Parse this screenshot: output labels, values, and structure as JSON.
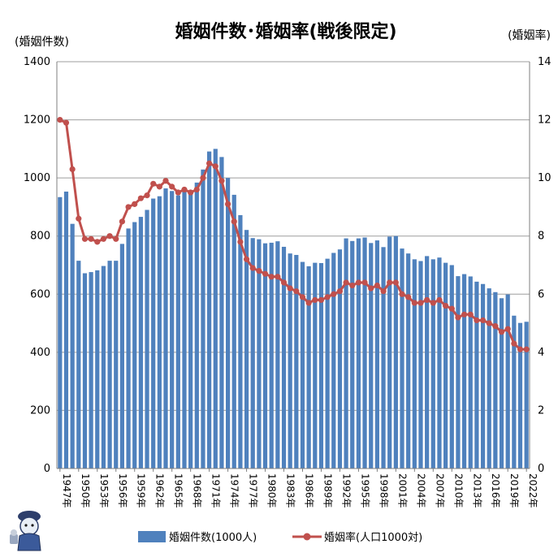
{
  "chart_data": {
    "type": "bar+line",
    "title": "婚姻件数･婚姻率(戦後限定)",
    "y_left_label": "(婚姻件数)",
    "y_right_label": "(婚姻率)",
    "y_left_range": [
      0,
      1400
    ],
    "y_left_ticks": [
      "0",
      "200",
      "400",
      "600",
      "800",
      "1000",
      "1200",
      "1400"
    ],
    "y_right_range": [
      0,
      14
    ],
    "y_right_ticks": [
      "0",
      "2",
      "4",
      "6",
      "8",
      "10",
      "12",
      "14"
    ],
    "grid": "horizontal",
    "legend_position": "bottom",
    "x": [
      1947,
      1948,
      1949,
      1950,
      1951,
      1952,
      1953,
      1954,
      1955,
      1956,
      1957,
      1958,
      1959,
      1960,
      1961,
      1962,
      1963,
      1964,
      1965,
      1966,
      1967,
      1968,
      1969,
      1970,
      1971,
      1972,
      1973,
      1974,
      1975,
      1976,
      1977,
      1978,
      1979,
      1980,
      1981,
      1982,
      1983,
      1984,
      1985,
      1986,
      1987,
      1988,
      1989,
      1990,
      1991,
      1992,
      1993,
      1994,
      1995,
      1996,
      1997,
      1998,
      1999,
      2000,
      2001,
      2002,
      2003,
      2004,
      2005,
      2006,
      2007,
      2008,
      2009,
      2010,
      2011,
      2012,
      2013,
      2014,
      2015,
      2016,
      2017,
      2018,
      2019,
      2020,
      2021,
      2022
    ],
    "x_tick_labels": [
      "1947年",
      "1950年",
      "1953年",
      "1956年",
      "1959年",
      "1962年",
      "1965年",
      "1968年",
      "1971年",
      "1974年",
      "1977年",
      "1980年",
      "1983年",
      "1986年",
      "1989年",
      "1992年",
      "1995年",
      "1998年",
      "2001年",
      "2004年",
      "2007年",
      "2010年",
      "2013年",
      "2016年",
      "2019年",
      "2022年"
    ],
    "series": [
      {
        "name": "婚姻件数(1000人)",
        "type": "bar",
        "axis": "left",
        "color": "#4f81bd",
        "values": [
          934,
          953,
          842,
          715,
          672,
          676,
          682,
          697,
          715,
          715,
          773,
          826,
          848,
          866,
          890,
          929,
          937,
          964,
          955,
          940,
          954,
          956,
          984,
          1029,
          1091,
          1100,
          1072,
          1000,
          942,
          872,
          821,
          793,
          789,
          775,
          777,
          782,
          763,
          740,
          735,
          711,
          696,
          708,
          707,
          722,
          742,
          754,
          792,
          783,
          792,
          795,
          776,
          785,
          762,
          798,
          800,
          757,
          740,
          720,
          714,
          731,
          720,
          726,
          708,
          700,
          662,
          669,
          661,
          643,
          635,
          620,
          607,
          586,
          599,
          526,
          501,
          505
        ]
      },
      {
        "name": "婚姻率(人口1000対)",
        "type": "line",
        "axis": "right",
        "color": "#c0504d",
        "values": [
          12.0,
          11.9,
          10.3,
          8.6,
          7.9,
          7.9,
          7.8,
          7.9,
          8.0,
          7.9,
          8.5,
          9.0,
          9.1,
          9.3,
          9.4,
          9.8,
          9.7,
          9.9,
          9.7,
          9.5,
          9.6,
          9.5,
          9.6,
          10.0,
          10.5,
          10.4,
          9.9,
          9.1,
          8.5,
          7.8,
          7.2,
          6.9,
          6.8,
          6.7,
          6.6,
          6.6,
          6.4,
          6.2,
          6.1,
          5.9,
          5.7,
          5.8,
          5.8,
          5.9,
          6.0,
          6.1,
          6.4,
          6.3,
          6.4,
          6.4,
          6.2,
          6.3,
          6.1,
          6.4,
          6.4,
          6.0,
          5.9,
          5.7,
          5.7,
          5.8,
          5.7,
          5.8,
          5.6,
          5.5,
          5.2,
          5.3,
          5.3,
          5.1,
          5.1,
          5.0,
          4.9,
          4.7,
          4.8,
          4.3,
          4.1,
          4.1
        ]
      }
    ]
  },
  "legend": {
    "bar_label": "婚姻件数(1000人)",
    "line_label": "婚姻率(人口1000対)"
  }
}
